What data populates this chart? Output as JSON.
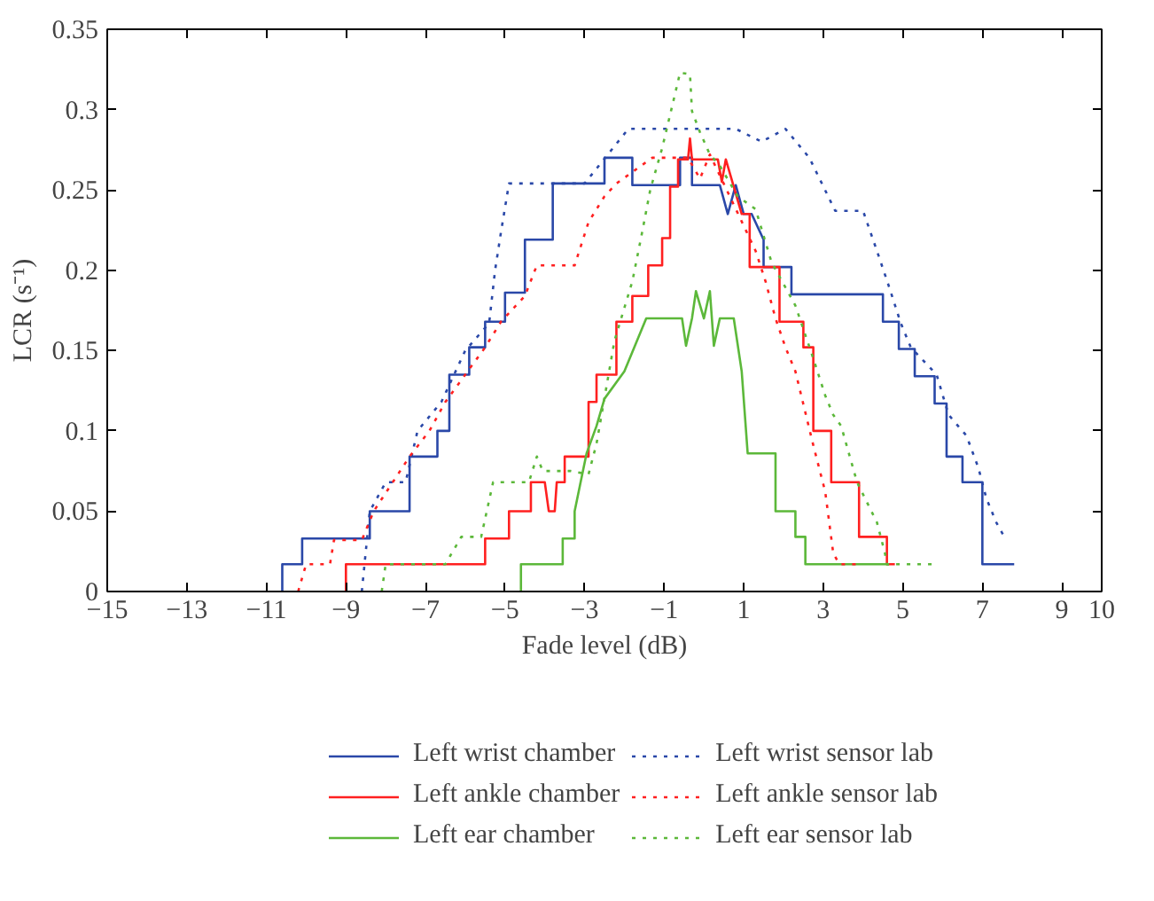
{
  "chart_data": {
    "type": "line",
    "xlabel": "Fade level (dB)",
    "ylabel": "LCR (s⁻¹)",
    "xlim": [
      -15,
      10
    ],
    "ylim": [
      0,
      0.35
    ],
    "xticks": [
      {
        "value": -15,
        "label": "−15"
      },
      {
        "value": -13,
        "label": "−13"
      },
      {
        "value": -11,
        "label": "−11"
      },
      {
        "value": -9,
        "label": "−9"
      },
      {
        "value": -7,
        "label": "−7"
      },
      {
        "value": -5,
        "label": "−5"
      },
      {
        "value": -3,
        "label": "−3"
      },
      {
        "value": -1,
        "label": "−1"
      },
      1,
      3,
      5,
      7,
      9,
      10
    ],
    "yticks": [
      0,
      0.05,
      0.1,
      0.15,
      0.2,
      0.25,
      0.3,
      0.35
    ],
    "grid": false,
    "legend": "bottom",
    "marker": "none",
    "series": [
      {
        "name": "Left wrist chamber",
        "color": "#2a48a8",
        "line_style": "solid",
        "x": [
          -10.6,
          -10.6,
          -10.1,
          -10.1,
          -8.4,
          -8.4,
          -7.4,
          -7.4,
          -6.7,
          -6.7,
          -6.4,
          -6.4,
          -5.9,
          -5.9,
          -5.5,
          -5.5,
          -5.0,
          -5.0,
          -4.5,
          -4.5,
          -3.8,
          -3.8,
          -2.5,
          -2.5,
          -1.8,
          -1.8,
          -0.6,
          -0.6,
          -0.3,
          -0.3,
          0.4,
          0.6,
          0.8,
          1.0,
          1.2,
          1.5,
          1.5,
          2.2,
          2.2,
          4.5,
          4.5,
          4.9,
          4.9,
          5.3,
          5.3,
          5.8,
          5.8,
          6.1,
          6.1,
          6.5,
          6.5,
          7.0,
          7.0,
          7.8
        ],
        "values": [
          0,
          0.017,
          0.017,
          0.033,
          0.033,
          0.05,
          0.05,
          0.084,
          0.084,
          0.1,
          0.1,
          0.135,
          0.135,
          0.152,
          0.152,
          0.168,
          0.168,
          0.186,
          0.186,
          0.219,
          0.219,
          0.254,
          0.254,
          0.27,
          0.27,
          0.253,
          0.253,
          0.27,
          0.27,
          0.253,
          0.253,
          0.235,
          0.253,
          0.235,
          0.235,
          0.219,
          0.202,
          0.202,
          0.185,
          0.185,
          0.168,
          0.168,
          0.151,
          0.151,
          0.134,
          0.134,
          0.117,
          0.117,
          0.084,
          0.084,
          0.068,
          0.068,
          0.017,
          0.017
        ]
      },
      {
        "name": "Left ankle chamber",
        "color": "#ff2020",
        "line_style": "solid",
        "x": [
          -9.0,
          -9.0,
          -5.5,
          -5.5,
          -4.9,
          -4.9,
          -4.35,
          -4.35,
          -4.0,
          -3.9,
          -3.75,
          -3.7,
          -3.5,
          -3.5,
          -2.9,
          -2.9,
          -2.7,
          -2.7,
          -2.2,
          -2.2,
          -1.8,
          -1.8,
          -1.4,
          -1.4,
          -1.05,
          -1.05,
          -0.85,
          -0.85,
          -0.65,
          -0.65,
          -0.4,
          -0.35,
          -0.3,
          0.35,
          0.45,
          0.55,
          0.95,
          1.15,
          1.15,
          1.9,
          1.9,
          2.5,
          2.5,
          2.75,
          2.75,
          3.2,
          3.2,
          3.9,
          3.9,
          4.6,
          4.6,
          4.8
        ],
        "values": [
          0,
          0.017,
          0.017,
          0.033,
          0.033,
          0.05,
          0.05,
          0.068,
          0.068,
          0.05,
          0.05,
          0.068,
          0.068,
          0.084,
          0.084,
          0.118,
          0.118,
          0.135,
          0.135,
          0.168,
          0.168,
          0.184,
          0.184,
          0.203,
          0.203,
          0.22,
          0.22,
          0.252,
          0.252,
          0.269,
          0.269,
          0.282,
          0.269,
          0.269,
          0.255,
          0.269,
          0.235,
          0.235,
          0.202,
          0.202,
          0.168,
          0.168,
          0.152,
          0.152,
          0.1,
          0.1,
          0.068,
          0.068,
          0.034,
          0.034,
          0.017,
          0.017
        ]
      },
      {
        "name": "Left ear chamber",
        "color": "#5cb83a",
        "line_style": "solid",
        "x": [
          -4.6,
          -4.6,
          -3.55,
          -3.55,
          -3.25,
          -3.25,
          -3.1,
          -2.95,
          -2.7,
          -2.5,
          -2.0,
          -1.45,
          -0.55,
          -0.45,
          -0.3,
          -0.2,
          0.0,
          0.15,
          0.25,
          0.4,
          0.75,
          0.95,
          1.1,
          1.8,
          1.8,
          2.3,
          2.3,
          2.55,
          2.55,
          4.65
        ],
        "values": [
          0,
          0.017,
          0.017,
          0.033,
          0.033,
          0.05,
          0.068,
          0.086,
          0.103,
          0.12,
          0.137,
          0.17,
          0.17,
          0.153,
          0.17,
          0.187,
          0.17,
          0.187,
          0.153,
          0.17,
          0.17,
          0.137,
          0.086,
          0.086,
          0.05,
          0.05,
          0.034,
          0.034,
          0.017,
          0.017
        ]
      },
      {
        "name": "Left wrist sensor lab",
        "color": "#2a48a8",
        "line_style": "dotted",
        "x": [
          -8.6,
          -8.4,
          -8.0,
          -7.5,
          -7.2,
          -6.6,
          -6.0,
          -5.4,
          -5.25,
          -5.1,
          -4.9,
          -3.0,
          -1.9,
          0.8,
          1.45,
          2.05,
          2.65,
          3.3,
          4.0,
          4.35,
          4.65,
          4.95,
          5.2,
          5.85,
          6.15,
          6.6,
          6.9,
          7.1,
          7.35,
          7.55
        ],
        "values": [
          0,
          0.05,
          0.068,
          0.068,
          0.1,
          0.118,
          0.15,
          0.167,
          0.2,
          0.224,
          0.254,
          0.254,
          0.288,
          0.288,
          0.28,
          0.288,
          0.27,
          0.237,
          0.237,
          0.212,
          0.19,
          0.167,
          0.152,
          0.135,
          0.11,
          0.097,
          0.077,
          0.058,
          0.043,
          0.034
        ]
      },
      {
        "name": "Left ankle sensor lab",
        "color": "#ff2020",
        "line_style": "dotted",
        "x": [
          -10.2,
          -10.0,
          -9.4,
          -9.3,
          -8.6,
          -8.3,
          -7.4,
          -6.9,
          -6.5,
          -6.0,
          -5.5,
          -5.1,
          -4.5,
          -4.2,
          -3.25,
          -2.9,
          -2.5,
          -2.2,
          -1.3,
          -0.4,
          -0.1,
          0.15,
          0.65,
          1.3,
          1.55,
          1.8,
          2.05,
          2.3,
          2.75,
          3.05,
          3.25,
          3.4,
          3.9
        ],
        "values": [
          0,
          0.017,
          0.017,
          0.032,
          0.032,
          0.05,
          0.084,
          0.1,
          0.118,
          0.135,
          0.152,
          0.168,
          0.184,
          0.203,
          0.203,
          0.23,
          0.246,
          0.254,
          0.27,
          0.27,
          0.257,
          0.272,
          0.246,
          0.212,
          0.193,
          0.17,
          0.152,
          0.137,
          0.091,
          0.062,
          0.024,
          0.017,
          0.017
        ]
      },
      {
        "name": "Left ear sensor lab",
        "color": "#5cb83a",
        "line_style": "dotted",
        "x": [
          -8.1,
          -8.0,
          -6.5,
          -6.1,
          -5.6,
          -5.3,
          -4.4,
          -4.2,
          -4.05,
          -3.35,
          -2.9,
          -2.7,
          -2.25,
          -1.8,
          -1.55,
          -1.35,
          -1.05,
          -0.8,
          -0.6,
          -0.35,
          -0.3,
          -0.1,
          0.15,
          0.4,
          0.85,
          1.3,
          1.7,
          2.3,
          2.75,
          3.05,
          3.25,
          3.45,
          3.85,
          4.35,
          4.55,
          4.6,
          5.8
        ],
        "values": [
          0,
          0.017,
          0.017,
          0.034,
          0.034,
          0.068,
          0.068,
          0.084,
          0.075,
          0.075,
          0.073,
          0.092,
          0.156,
          0.193,
          0.224,
          0.25,
          0.276,
          0.302,
          0.323,
          0.322,
          0.299,
          0.286,
          0.272,
          0.265,
          0.246,
          0.238,
          0.205,
          0.178,
          0.145,
          0.122,
          0.11,
          0.103,
          0.068,
          0.043,
          0.024,
          0.017,
          0.017
        ]
      }
    ]
  }
}
